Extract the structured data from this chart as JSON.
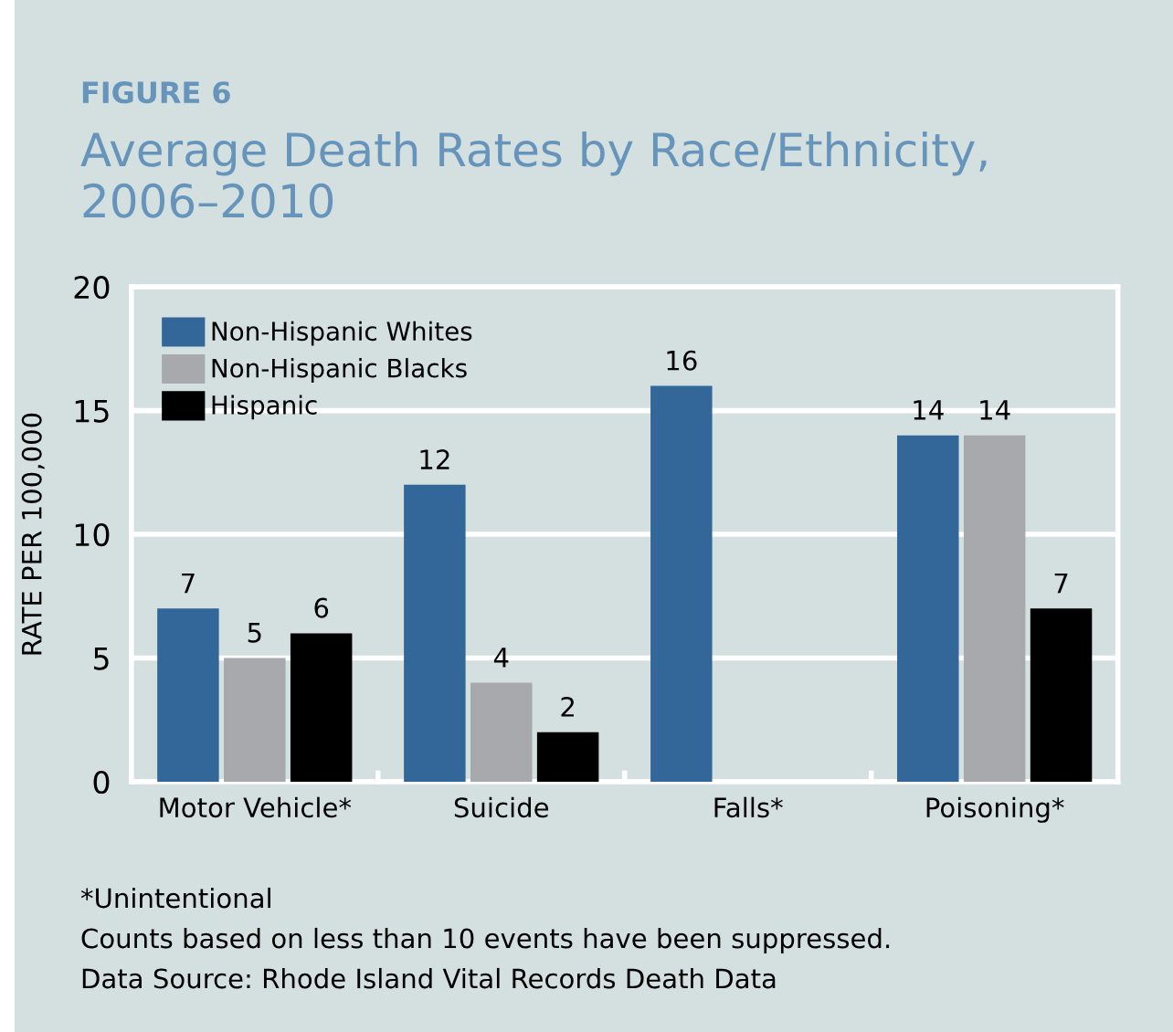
{
  "chart_data": {
    "type": "bar",
    "title": "FIGURE 6",
    "subtitle": "Average Death Rates by Race/Ethnicity,\n2006–2010",
    "ylabel": "RATE PER 100,000",
    "categories": [
      "Motor Vehicle*",
      "Suicide",
      "Falls*",
      "Poisoning*"
    ],
    "series": [
      {
        "name": "Non-Hispanic Whites",
        "color": "#336699",
        "values": [
          7,
          12,
          16,
          14
        ]
      },
      {
        "name": "Non-Hispanic Blacks",
        "color": "#a7a9ac",
        "values": [
          5,
          4,
          null,
          14
        ]
      },
      {
        "name": "Hispanic",
        "color": "#000000",
        "values": [
          6,
          2,
          null,
          7
        ]
      }
    ],
    "ylim": [
      0,
      20
    ],
    "yticks": [
      0,
      5,
      10,
      15,
      20
    ],
    "grid": "y",
    "legend": "top left",
    "data_labels": true,
    "annotations": [
      "*Unintentional",
      "Counts based on less than 10 events have been suppressed.",
      "Data Source: Rhode Island Vital Records Death Data"
    ]
  }
}
